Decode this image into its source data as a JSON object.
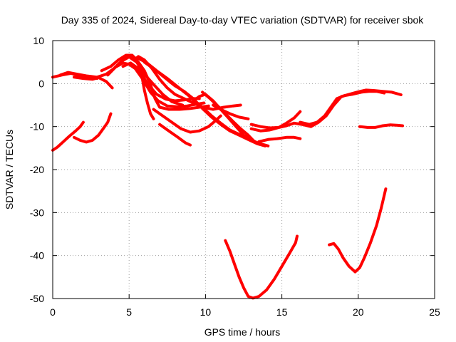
{
  "chart_data": {
    "type": "line",
    "title": "Day 335 of 2024, Sidereal Day-to-day VTEC variation (SDTVAR) for receiver sbok",
    "xlabel": "GPS time / hours",
    "ylabel": "SDTVAR / TECUs",
    "xlim": [
      0,
      25
    ],
    "ylim": [
      -50,
      10
    ],
    "xticks": [
      0,
      5,
      10,
      15,
      20,
      25
    ],
    "yticks": [
      -50,
      -40,
      -30,
      -20,
      -10,
      0,
      10
    ],
    "grid": true,
    "line_color": "#ff0000",
    "series": [
      {
        "name": "trace-1",
        "points": [
          [
            0,
            1.5
          ],
          [
            0.6,
            2.0
          ],
          [
            1.2,
            2.4
          ],
          [
            1.8,
            1.8
          ],
          [
            2.4,
            1.6
          ],
          [
            2.9,
            1.2
          ]
        ]
      },
      {
        "name": "trace-2",
        "points": [
          [
            0.5,
            2.0
          ],
          [
            1.0,
            2.6
          ],
          [
            1.6,
            2.2
          ],
          [
            2.2,
            1.8
          ],
          [
            2.9,
            1.5
          ],
          [
            3.5,
            2.2
          ],
          [
            4.0,
            3.5
          ],
          [
            4.5,
            5.2
          ],
          [
            4.9,
            6.3
          ],
          [
            5.2,
            6.4
          ],
          [
            5.6,
            5.0
          ],
          [
            6.0,
            3.0
          ],
          [
            6.4,
            -0.2
          ],
          [
            6.7,
            -3.5
          ],
          [
            7.0,
            -5.5
          ],
          [
            7.6,
            -6.0
          ],
          [
            8.3,
            -6.0
          ],
          [
            9.0,
            -5.8
          ],
          [
            9.6,
            -5.5
          ],
          [
            10.2,
            -5.2
          ]
        ]
      },
      {
        "name": "trace-3",
        "points": [
          [
            1.4,
            1.5
          ],
          [
            2.0,
            1.2
          ],
          [
            2.6,
            1.0
          ],
          [
            3.0,
            1.4
          ],
          [
            3.5,
            0.5
          ],
          [
            3.9,
            -1.0
          ]
        ]
      },
      {
        "name": "trace-4",
        "points": [
          [
            3.2,
            3.0
          ],
          [
            3.8,
            4.0
          ],
          [
            4.3,
            5.5
          ],
          [
            4.8,
            6.6
          ],
          [
            5.2,
            6.6
          ],
          [
            5.5,
            5.5
          ],
          [
            5.8,
            2.5
          ],
          [
            6.0,
            -1.5
          ],
          [
            6.2,
            -4.5
          ],
          [
            6.4,
            -7.0
          ],
          [
            6.6,
            -8.2
          ]
        ]
      },
      {
        "name": "trace-5",
        "points": [
          [
            3.6,
            2.0
          ],
          [
            4.1,
            3.8
          ],
          [
            4.6,
            4.8
          ],
          [
            5.0,
            4.5
          ],
          [
            5.4,
            3.5
          ],
          [
            5.9,
            1.0
          ],
          [
            6.4,
            -2.0
          ],
          [
            6.9,
            -4.0
          ],
          [
            7.5,
            -5.2
          ],
          [
            8.2,
            -5.4
          ],
          [
            8.8,
            -5.2
          ],
          [
            9.4,
            -4.8
          ],
          [
            9.9,
            -4.5
          ]
        ]
      },
      {
        "name": "trace-6",
        "points": [
          [
            4.0,
            3.5
          ],
          [
            4.5,
            5.2
          ],
          [
            5.0,
            6.2
          ],
          [
            5.5,
            5.0
          ],
          [
            6.0,
            2.2
          ],
          [
            6.5,
            0.2
          ],
          [
            7.2,
            -2.5
          ],
          [
            7.8,
            -4.2
          ],
          [
            8.5,
            -5.0
          ]
        ]
      },
      {
        "name": "trace-7",
        "points": [
          [
            4.6,
            4.0
          ],
          [
            5.1,
            4.8
          ],
          [
            5.6,
            3.5
          ],
          [
            6.2,
            0.0
          ],
          [
            6.8,
            -2.5
          ],
          [
            7.4,
            -3.6
          ],
          [
            8.0,
            -4.0
          ],
          [
            8.6,
            -3.8
          ],
          [
            9.2,
            -3.5
          ],
          [
            9.6,
            -3.5
          ]
        ]
      },
      {
        "name": "trace-8",
        "points": [
          [
            5.6,
            6.3
          ],
          [
            6.0,
            5.5
          ],
          [
            6.5,
            3.5
          ],
          [
            7.0,
            1.0
          ],
          [
            7.5,
            -1.0
          ],
          [
            8.0,
            -2.5
          ],
          [
            8.6,
            -3.5
          ],
          [
            9.2,
            -4.5
          ],
          [
            9.8,
            -5.5
          ],
          [
            10.5,
            -6.0
          ],
          [
            11.2,
            -5.5
          ],
          [
            11.8,
            -5.2
          ],
          [
            12.3,
            -5.0
          ]
        ]
      },
      {
        "name": "trace-9",
        "points": [
          [
            6.0,
            5.0
          ],
          [
            6.6,
            3.5
          ],
          [
            7.3,
            1.5
          ],
          [
            8.0,
            -0.5
          ],
          [
            8.6,
            -1.8
          ],
          [
            9.2,
            -3.5
          ],
          [
            9.8,
            -5.8
          ],
          [
            10.4,
            -7.8
          ],
          [
            11.0,
            -9.5
          ],
          [
            11.6,
            -11.0
          ],
          [
            12.2,
            -12.0
          ],
          [
            12.8,
            -13.0
          ],
          [
            13.4,
            -14.0
          ],
          [
            13.9,
            -14.5
          ]
        ]
      },
      {
        "name": "trace-10",
        "points": [
          [
            5.5,
            6.0
          ],
          [
            6.1,
            5.0
          ],
          [
            6.8,
            3.0
          ],
          [
            7.5,
            1.2
          ],
          [
            8.2,
            -0.8
          ],
          [
            8.8,
            -2.5
          ],
          [
            9.3,
            -4.0
          ],
          [
            9.8,
            -5.5
          ],
          [
            10.4,
            -7.5
          ],
          [
            11.0,
            -9.2
          ],
          [
            11.6,
            -10.8
          ],
          [
            12.2,
            -11.8
          ],
          [
            12.8,
            -12.8
          ],
          [
            13.4,
            -13.8
          ],
          [
            14.1,
            -14.5
          ]
        ]
      },
      {
        "name": "trace-11",
        "points": [
          [
            6.6,
            -6.0
          ],
          [
            7.2,
            -7.5
          ],
          [
            7.8,
            -9.0
          ],
          [
            8.4,
            -10.5
          ],
          [
            9.0,
            -11.3
          ],
          [
            9.6,
            -11.0
          ],
          [
            10.2,
            -10.0
          ],
          [
            10.7,
            -8.5
          ],
          [
            11.0,
            -7.5
          ]
        ]
      },
      {
        "name": "trace-12",
        "points": [
          [
            7.0,
            -9.5
          ],
          [
            7.6,
            -11.0
          ],
          [
            8.2,
            -12.5
          ],
          [
            8.7,
            -13.8
          ],
          [
            9.0,
            -14.3
          ]
        ]
      },
      {
        "name": "trace-13",
        "points": [
          [
            9.2,
            -4.0
          ],
          [
            9.6,
            -3.0
          ],
          [
            10.0,
            -2.5
          ],
          [
            10.5,
            -4.0
          ],
          [
            11.0,
            -6.0
          ],
          [
            11.5,
            -8.0
          ],
          [
            12.0,
            -10.0
          ],
          [
            12.5,
            -12.0
          ],
          [
            13.0,
            -13.0
          ],
          [
            13.5,
            -14.0
          ]
        ]
      },
      {
        "name": "trace-14",
        "points": [
          [
            9.8,
            -2.0
          ],
          [
            10.3,
            -3.5
          ],
          [
            10.8,
            -5.2
          ],
          [
            11.3,
            -7.0
          ],
          [
            11.8,
            -8.8
          ],
          [
            12.3,
            -10.5
          ],
          [
            12.8,
            -12.0
          ],
          [
            13.2,
            -13.5
          ]
        ]
      },
      {
        "name": "trace-15",
        "points": [
          [
            10.5,
            -5.0
          ],
          [
            11.0,
            -6.0
          ],
          [
            11.6,
            -7.0
          ],
          [
            12.2,
            -7.8
          ],
          [
            12.8,
            -8.2
          ]
        ]
      },
      {
        "name": "trace-16",
        "points": [
          [
            13.0,
            -9.5
          ],
          [
            13.6,
            -10.0
          ],
          [
            14.2,
            -10.3
          ],
          [
            14.8,
            -10.2
          ],
          [
            15.3,
            -9.8
          ],
          [
            15.8,
            -9.2
          ],
          [
            16.3,
            -9.5
          ],
          [
            16.9,
            -10.0
          ],
          [
            17.4,
            -9.0
          ],
          [
            17.9,
            -7.5
          ],
          [
            18.4,
            -5.0
          ],
          [
            18.9,
            -3.0
          ],
          [
            19.4,
            -2.5
          ],
          [
            19.9,
            -2.0
          ],
          [
            20.5,
            -1.5
          ],
          [
            21.0,
            -1.6
          ],
          [
            21.6,
            -1.8
          ],
          [
            22.2,
            -2.0
          ],
          [
            22.8,
            -2.6
          ]
        ]
      },
      {
        "name": "trace-17",
        "points": [
          [
            13.0,
            -10.5
          ],
          [
            13.6,
            -11.0
          ],
          [
            14.2,
            -10.8
          ],
          [
            14.8,
            -10.2
          ],
          [
            15.3,
            -9.2
          ],
          [
            15.8,
            -8.0
          ],
          [
            16.2,
            -6.5
          ]
        ]
      },
      {
        "name": "trace-18",
        "points": [
          [
            13.5,
            -13.5
          ],
          [
            14.1,
            -13.0
          ],
          [
            14.7,
            -12.8
          ],
          [
            15.3,
            -12.5
          ],
          [
            15.8,
            -12.5
          ],
          [
            16.2,
            -12.8
          ]
        ]
      },
      {
        "name": "trace-19",
        "points": [
          [
            16.2,
            -9.0
          ],
          [
            16.8,
            -9.5
          ],
          [
            17.3,
            -9.0
          ],
          [
            17.8,
            -7.5
          ],
          [
            18.2,
            -5.5
          ],
          [
            18.6,
            -3.5
          ],
          [
            19.1,
            -2.8
          ],
          [
            19.6,
            -2.5
          ],
          [
            20.2,
            -2.0
          ],
          [
            20.7,
            -1.8
          ],
          [
            21.2,
            -1.8
          ],
          [
            21.7,
            -2.2
          ]
        ]
      },
      {
        "name": "trace-20",
        "points": [
          [
            0,
            -15.5
          ],
          [
            0.3,
            -14.8
          ],
          [
            0.7,
            -13.5
          ],
          [
            1.1,
            -12.2
          ],
          [
            1.5,
            -11.0
          ],
          [
            1.8,
            -10.0
          ],
          [
            2.0,
            -9.0
          ]
        ]
      },
      {
        "name": "trace-21",
        "points": [
          [
            1.4,
            -12.5
          ],
          [
            1.8,
            -13.2
          ],
          [
            2.2,
            -13.6
          ],
          [
            2.6,
            -13.2
          ],
          [
            3.0,
            -12.0
          ],
          [
            3.3,
            -10.5
          ],
          [
            3.6,
            -9.0
          ],
          [
            3.8,
            -7.0
          ]
        ]
      },
      {
        "name": "trace-22",
        "points": [
          [
            20.1,
            -10.0
          ],
          [
            20.6,
            -10.2
          ],
          [
            21.1,
            -10.2
          ],
          [
            21.6,
            -9.8
          ],
          [
            22.1,
            -9.6
          ],
          [
            22.6,
            -9.7
          ],
          [
            22.9,
            -9.8
          ]
        ]
      },
      {
        "name": "trace-23",
        "points": [
          [
            11.3,
            -36.5
          ],
          [
            11.6,
            -39.0
          ],
          [
            11.9,
            -42.0
          ],
          [
            12.2,
            -45.0
          ],
          [
            12.5,
            -47.5
          ],
          [
            12.8,
            -49.5
          ],
          [
            13.1,
            -49.9
          ],
          [
            13.5,
            -49.5
          ],
          [
            14.0,
            -48.0
          ],
          [
            14.5,
            -45.5
          ],
          [
            15.0,
            -42.5
          ],
          [
            15.5,
            -39.5
          ],
          [
            15.9,
            -37.0
          ],
          [
            16.0,
            -35.5
          ]
        ]
      },
      {
        "name": "trace-24",
        "points": [
          [
            18.1,
            -37.5
          ],
          [
            18.4,
            -37.2
          ],
          [
            18.7,
            -38.5
          ],
          [
            19.0,
            -40.5
          ],
          [
            19.4,
            -42.5
          ],
          [
            19.8,
            -43.8
          ],
          [
            20.1,
            -42.8
          ],
          [
            20.4,
            -40.5
          ],
          [
            20.8,
            -37.0
          ],
          [
            21.2,
            -33.0
          ],
          [
            21.5,
            -29.0
          ],
          [
            21.8,
            -24.5
          ]
        ]
      }
    ]
  }
}
